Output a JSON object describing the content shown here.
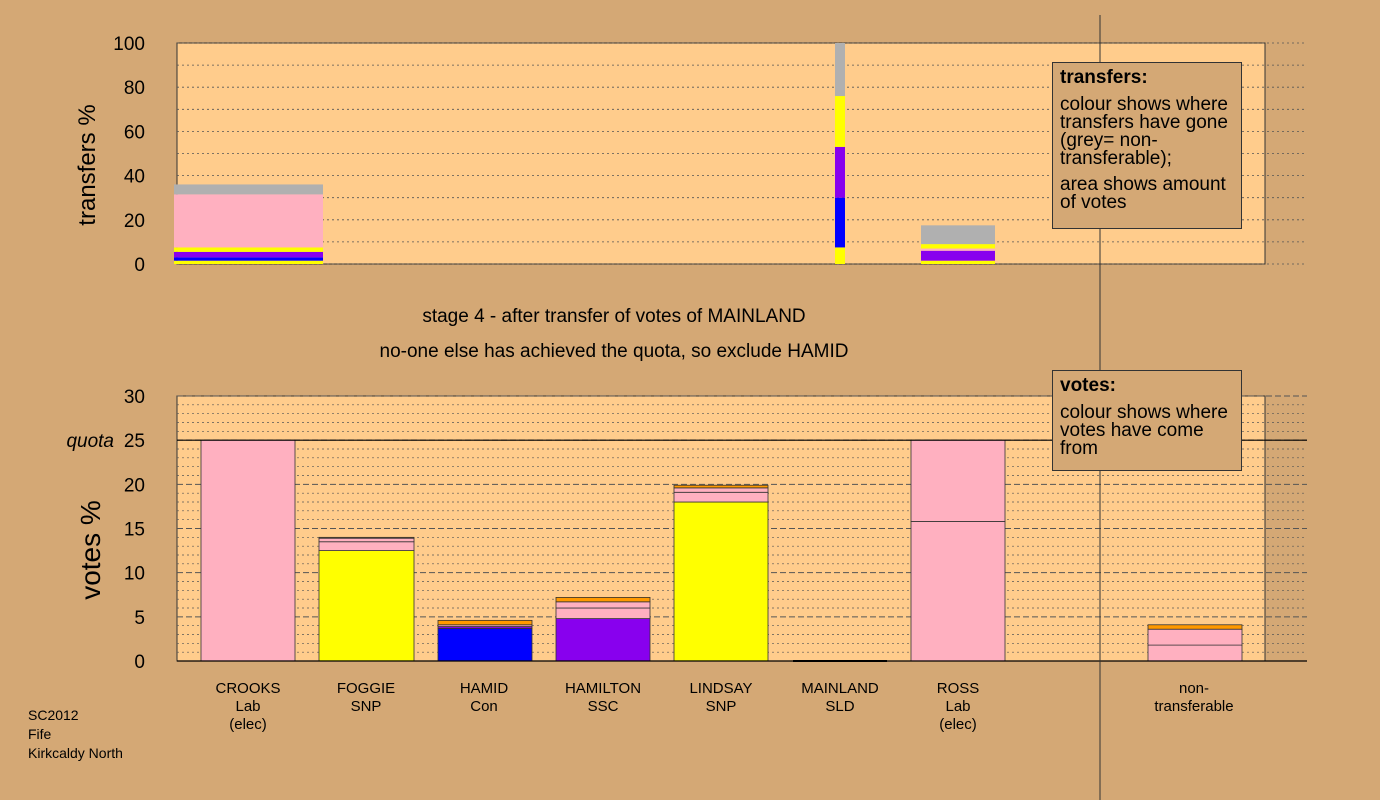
{
  "colors": {
    "background": "#d4a875",
    "plot_bg": "#ffcc8c",
    "Lab": "#ffb0c0",
    "SNP": "#ffff00",
    "Con": "#0000ff",
    "SSC": "#8800ee",
    "SLD": "#ff9900",
    "nontransferable": "#b0b0b0",
    "line": "#000000"
  },
  "stage_text": {
    "line1": "stage 4 - after transfer of votes of MAINLAND",
    "line2": "no-one else has achieved the quota, so exclude HAMID"
  },
  "legend_transfers": {
    "title": "transfers:",
    "line1": "colour shows where transfers have gone (grey= non-transferable);",
    "line2": "area shows amount of votes"
  },
  "legend_votes": {
    "title": "votes:",
    "line1": "colour shows where votes have come from"
  },
  "footer": {
    "line1": "SC2012",
    "line2": "Fife",
    "line3": "Kirkcaldy North"
  },
  "candidates": [
    {
      "name": "CROOKS",
      "party": "Lab",
      "note": "(elec)"
    },
    {
      "name": "FOGGIE",
      "party": "SNP",
      "note": ""
    },
    {
      "name": "HAMID",
      "party": "Con",
      "note": ""
    },
    {
      "name": "HAMILTON",
      "party": "SSC",
      "note": ""
    },
    {
      "name": "LINDSAY",
      "party": "SNP",
      "note": ""
    },
    {
      "name": "MAINLAND",
      "party": "SLD",
      "note": ""
    },
    {
      "name": "ROSS",
      "party": "Lab",
      "note": "(elec)"
    }
  ],
  "nontransferable_label": "non-\ntransferable",
  "chart_data": [
    {
      "type": "bar",
      "ylabel": "transfers %",
      "ylim": [
        0,
        100
      ],
      "yticks": [
        0,
        20,
        40,
        60,
        80,
        100
      ],
      "grid": "dotted",
      "bars": [
        {
          "candidate": "CROOKS",
          "segments": [
            {
              "party": "SNP",
              "value": 1.5
            },
            {
              "party": "Con",
              "value": 1.5
            },
            {
              "party": "SSC",
              "value": 2.5
            },
            {
              "party": "SNP",
              "value": 2
            },
            {
              "party": "Lab",
              "value": 24
            },
            {
              "party": "nontransferable",
              "value": 4.5
            }
          ]
        },
        {
          "candidate": "MAINLAND",
          "segments": [
            {
              "party": "SNP",
              "value": 7.5
            },
            {
              "party": "Con",
              "value": 22.5
            },
            {
              "party": "SSC",
              "value": 23
            },
            {
              "party": "SNP",
              "value": 23
            },
            {
              "party": "nontransferable",
              "value": 24
            }
          ]
        },
        {
          "candidate": "ROSS",
          "segments": [
            {
              "party": "SNP",
              "value": 1.5
            },
            {
              "party": "SSC",
              "value": 4.5
            },
            {
              "party": "Lab",
              "value": 1
            },
            {
              "party": "SNP",
              "value": 2
            },
            {
              "party": "nontransferable",
              "value": 8.5
            }
          ]
        }
      ]
    },
    {
      "type": "bar",
      "ylabel": "votes %",
      "ylim": [
        0,
        30
      ],
      "yticks": [
        0,
        5,
        10,
        15,
        20,
        25,
        30
      ],
      "quota": 25,
      "quota_label": "quota",
      "grid": "dashed",
      "bars": [
        {
          "candidate": "CROOKS",
          "segments": [
            {
              "party": "Lab",
              "value": 25
            }
          ]
        },
        {
          "candidate": "FOGGIE",
          "segments": [
            {
              "party": "SNP",
              "value": 12.5
            },
            {
              "party": "Lab",
              "value": 1
            },
            {
              "party": "Lab",
              "value": 0.4
            },
            {
              "party": "SLD",
              "value": 0.1
            }
          ]
        },
        {
          "candidate": "HAMID",
          "segments": [
            {
              "party": "Con",
              "value": 3.7
            },
            {
              "party": "SSC",
              "value": 0.2
            },
            {
              "party": "Lab",
              "value": 0.2
            },
            {
              "party": "SLD",
              "value": 0.5
            }
          ]
        },
        {
          "candidate": "HAMILTON",
          "segments": [
            {
              "party": "SSC",
              "value": 4.8
            },
            {
              "party": "Lab",
              "value": 1.2
            },
            {
              "party": "Lab",
              "value": 0.7
            },
            {
              "party": "SLD",
              "value": 0.5
            }
          ]
        },
        {
          "candidate": "LINDSAY",
          "segments": [
            {
              "party": "SNP",
              "value": 18
            },
            {
              "party": "Lab",
              "value": 1.1
            },
            {
              "party": "Lab",
              "value": 0.5
            },
            {
              "party": "SLD",
              "value": 0.3
            }
          ]
        },
        {
          "candidate": "MAINLAND",
          "segments": []
        },
        {
          "candidate": "ROSS",
          "segments": [
            {
              "party": "Lab",
              "value": 15.8
            },
            {
              "party": "Lab",
              "value": 9.2
            }
          ]
        },
        {
          "candidate": "non-transferable",
          "segments": [
            {
              "party": "Lab",
              "value": 1.8
            },
            {
              "party": "Lab",
              "value": 1.8
            },
            {
              "party": "SLD",
              "value": 0.5
            }
          ]
        }
      ]
    }
  ]
}
